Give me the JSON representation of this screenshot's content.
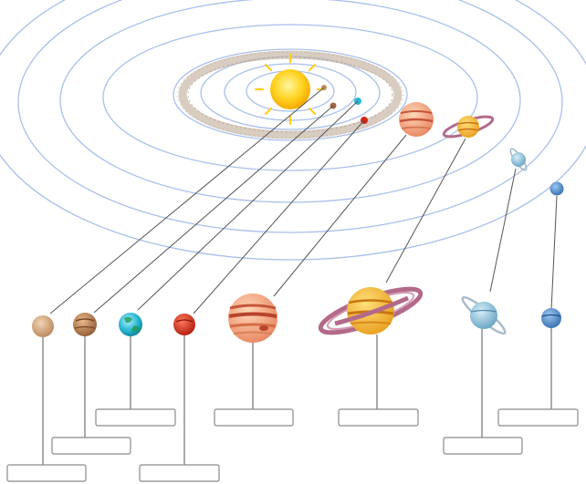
{
  "diagram": {
    "labels": [
      "",
      "",
      "",
      "",
      "",
      "",
      "",
      ""
    ]
  },
  "colors": {
    "orbit": "#a8c0ea",
    "asteroid_belt": "#c9b8a8",
    "connector": "#555555",
    "box_border": "#8a8a8a",
    "sun": "#ffd21f"
  },
  "icons": [
    "sun-icon",
    "mercury-icon",
    "venus-icon",
    "earth-icon",
    "mars-icon",
    "jupiter-icon",
    "saturn-icon",
    "uranus-icon",
    "neptune-icon"
  ]
}
